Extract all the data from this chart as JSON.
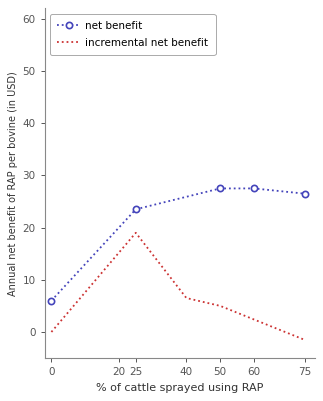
{
  "net_benefit_x": [
    0,
    25,
    50,
    60,
    75
  ],
  "net_benefit_y": [
    6.0,
    23.5,
    27.5,
    27.5,
    26.5
  ],
  "incremental_x": [
    0,
    25,
    40,
    50,
    75
  ],
  "incremental_y": [
    0.0,
    19.0,
    6.5,
    5.0,
    -1.5
  ],
  "net_color": "#4444bb",
  "inc_color": "#cc3333",
  "xlabel": "% of cattle sprayed using RAP",
  "ylabel": "Annual net benefit of RAP per bovine (in USD)",
  "xlim": [
    -2,
    78
  ],
  "ylim": [
    -5,
    62
  ],
  "yticks": [
    0,
    10,
    20,
    30,
    40,
    50,
    60
  ],
  "xticks": [
    0,
    20,
    25,
    40,
    50,
    60,
    75
  ],
  "legend_net": "net benefit",
  "legend_inc": "incremental net benefit",
  "bg_color": "#ffffff",
  "plot_bg": "#ffffff"
}
